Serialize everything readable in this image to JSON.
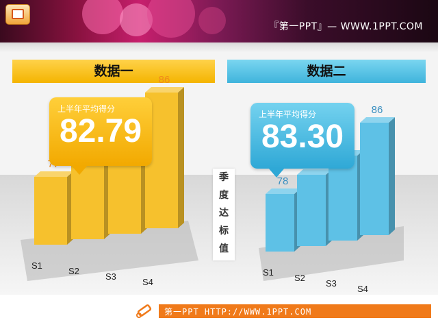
{
  "header": {
    "brand": "『第一PPT』— WWW.1PPT.COM",
    "bg_colors": [
      "#3a0a1e",
      "#c71f6d",
      "#1b0713"
    ]
  },
  "left_panel": {
    "title": "数据一",
    "callout_caption": "上半年平均得分",
    "callout_value": "82.79",
    "color": "#f4b400"
  },
  "right_panel": {
    "title": "数据二",
    "callout_caption": "上半年平均得分",
    "callout_value": "83.30",
    "color": "#3fb4dc"
  },
  "vertical_label": [
    "季",
    "度",
    "达",
    "标",
    "值"
  ],
  "chart_data": [
    {
      "type": "bar",
      "categories": [
        "S1",
        "S2",
        "S3",
        "S4"
      ],
      "values": [
        77,
        80,
        82,
        86
      ],
      "title": "数据一",
      "ylim": [
        70,
        90
      ],
      "grid": false,
      "bar_color": "#f6c12d",
      "label_color": "#f08a1c"
    },
    {
      "type": "bar",
      "categories": [
        "S1",
        "S2",
        "S3",
        "S4"
      ],
      "values": [
        78,
        80,
        82,
        86
      ],
      "title": "数据二",
      "ylim": [
        70,
        90
      ],
      "grid": false,
      "bar_color": "#5ec1e6",
      "label_color": "#3a8fc0"
    }
  ],
  "footer": {
    "text": "第一PPT HTTP://WWW.1PPT.COM",
    "icon": "pencil-icon",
    "color": "#f07a1a"
  }
}
